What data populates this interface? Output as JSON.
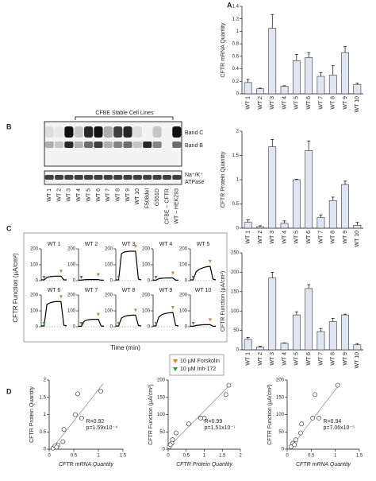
{
  "panel_labels": [
    "A",
    "B",
    "C",
    "D"
  ],
  "blot": {
    "title": "CFBE Stable Cell Lines",
    "lanes": [
      "WT 1",
      "WT 2",
      "WT 3",
      "WT 4",
      "WT 5",
      "WT 6",
      "WT 7",
      "WT 8",
      "WT 9",
      "WT 10",
      "F508del",
      "G551D",
      "CFBE – CFTR",
      "WT – HEK293"
    ],
    "band_labels": [
      "Band C",
      "Band B",
      "Na⁺/K⁺",
      "ATPase"
    ]
  },
  "trace_legend": [
    "10 µM Forskolin",
    "10 µM Inh-172"
  ],
  "chart_data": [
    {
      "type": "bar",
      "ylabel": "CFTR mRNA Quantity",
      "color": "#dde6f2",
      "categories": [
        "WT 1",
        "WT 2",
        "WT 3",
        "WT 4",
        "WT 5",
        "WT 6",
        "WT 7",
        "WT 8",
        "WT 9",
        "WT 10"
      ],
      "values": [
        0.18,
        0.08,
        1.05,
        0.12,
        0.53,
        0.58,
        0.28,
        0.3,
        0.66,
        0.15
      ],
      "errors": [
        0.05,
        0.01,
        0.22,
        0.01,
        0.1,
        0.08,
        0.06,
        0.15,
        0.1,
        0.02
      ],
      "ylim": [
        0,
        1.4
      ],
      "yticks": [
        0,
        0.2,
        0.4,
        0.6,
        0.8,
        1,
        1.2,
        1.4
      ]
    },
    {
      "type": "bar",
      "ylabel": "CFTR Protein Quantity",
      "color": "#dde6f2",
      "categories": [
        "WT 1",
        "WT 2",
        "WT 3",
        "WT 4",
        "WT 5",
        "WT 6",
        "WT 7",
        "WT 8",
        "WT 9",
        "WT 10"
      ],
      "values": [
        0.12,
        0.03,
        1.68,
        0.1,
        1.0,
        1.6,
        0.22,
        0.57,
        0.9,
        0.06
      ],
      "errors": [
        0.05,
        0.02,
        0.15,
        0.05,
        0.01,
        0.2,
        0.05,
        0.07,
        0.07,
        0.06
      ],
      "ylim": [
        0,
        2
      ],
      "yticks": [
        0,
        0.5,
        1,
        1.5,
        2
      ]
    },
    {
      "type": "bar",
      "ylabel": "CFTR Function (µA/cm²)",
      "color": "#dde6f2",
      "categories": [
        "WT 1",
        "WT 2",
        "WT 3",
        "WT 4",
        "WT 5",
        "WT 6",
        "WT 7",
        "WT 8",
        "WT 9",
        "WT 10"
      ],
      "values": [
        27,
        7,
        185,
        17,
        90,
        158,
        47,
        73,
        90,
        13
      ],
      "errors": [
        5,
        2,
        15,
        1,
        8,
        10,
        8,
        8,
        2,
        3
      ],
      "ylim": [
        0,
        250
      ],
      "yticks": [
        0,
        50,
        100,
        150,
        200,
        250
      ]
    },
    {
      "type": "line",
      "ylabel": "CFTR Function (µA/cm²)",
      "xlabel": "Time (min)",
      "ylim": [
        0,
        200
      ],
      "yticks": [
        0,
        100,
        200
      ],
      "series": [
        {
          "name": "WT 1",
          "color": "#000000",
          "values": [
            5,
            5,
            20,
            25,
            27,
            28,
            28,
            28,
            5,
            5
          ]
        },
        {
          "name": "WT 2",
          "color": "#000000",
          "values": [
            3,
            3,
            6,
            7,
            7,
            7,
            7,
            7,
            3,
            3
          ]
        },
        {
          "name": "WT 3",
          "color": "#000000",
          "values": [
            5,
            5,
            170,
            180,
            183,
            185,
            185,
            185,
            10,
            5
          ]
        },
        {
          "name": "WT 4",
          "color": "#000000",
          "values": [
            3,
            3,
            12,
            15,
            16,
            17,
            17,
            17,
            3,
            3
          ]
        },
        {
          "name": "WT 5",
          "color": "#000000",
          "values": [
            5,
            5,
            55,
            70,
            78,
            84,
            88,
            90,
            10,
            5
          ]
        },
        {
          "name": "WT 6",
          "color": "#000000",
          "values": [
            5,
            5,
            140,
            150,
            155,
            158,
            158,
            158,
            10,
            5
          ]
        },
        {
          "name": "WT 7",
          "color": "#000000",
          "values": [
            3,
            3,
            35,
            42,
            45,
            47,
            47,
            47,
            5,
            3
          ]
        },
        {
          "name": "WT 8",
          "color": "#000000",
          "values": [
            5,
            5,
            55,
            65,
            70,
            72,
            73,
            73,
            8,
            5
          ]
        },
        {
          "name": "WT 9",
          "color": "#000000",
          "values": [
            5,
            5,
            60,
            75,
            82,
            86,
            88,
            90,
            8,
            5
          ]
        },
        {
          "name": "WT 10",
          "color": "#000000",
          "values": [
            3,
            3,
            8,
            10,
            12,
            13,
            13,
            13,
            3,
            3
          ]
        }
      ]
    },
    {
      "type": "scatter",
      "xlabel": "CFTR mRNA Quantity",
      "ylabel": "CFTR Protein Quantity",
      "x": [
        0.18,
        0.08,
        1.05,
        0.12,
        0.53,
        0.58,
        0.28,
        0.3,
        0.66,
        0.15
      ],
      "values": [
        0.12,
        0.03,
        1.68,
        0.1,
        1.0,
        1.6,
        0.22,
        0.57,
        0.9,
        0.06
      ],
      "fit_line": {
        "x": [
          0.05,
          1.1
        ],
        "y": [
          0,
          1.9
        ]
      },
      "annotations": [
        "R=0.92",
        "p=1.59x10⁻⁴"
      ],
      "xlim": [
        0,
        1.5
      ],
      "xticks": [
        0,
        0.5,
        1,
        1.5
      ],
      "ylim": [
        0,
        2
      ],
      "yticks": [
        0,
        0.5,
        1,
        1.5,
        2
      ]
    },
    {
      "type": "scatter",
      "xlabel": "CFTR Protein Quantity",
      "ylabel": "CFTR Function (µA/cm²)",
      "x": [
        0.12,
        0.03,
        1.68,
        0.1,
        1.0,
        1.6,
        0.22,
        0.57,
        0.9,
        0.06
      ],
      "values": [
        27,
        7,
        185,
        17,
        90,
        158,
        47,
        73,
        90,
        13
      ],
      "fit_line": {
        "x": [
          0,
          1.75
        ],
        "y": [
          5,
          190
        ]
      },
      "annotations": [
        "R=0.99",
        "p=1.51x10⁻⁷"
      ],
      "xlim": [
        0,
        2
      ],
      "xticks": [
        0,
        0.5,
        1,
        1.5,
        2
      ],
      "ylim": [
        0,
        200
      ],
      "yticks": [
        0,
        50,
        100,
        150,
        200
      ]
    },
    {
      "type": "scatter",
      "xlabel": "CFTR mRNA Quantity",
      "ylabel": "CFTR Function (µA/cm²)",
      "x": [
        0.18,
        0.08,
        1.05,
        0.12,
        0.53,
        0.58,
        0.28,
        0.3,
        0.66,
        0.15
      ],
      "values": [
        27,
        7,
        185,
        17,
        90,
        158,
        47,
        73,
        90,
        13
      ],
      "fit_line": {
        "x": [
          0.05,
          1.1
        ],
        "y": [
          0,
          190
        ]
      },
      "annotations": [
        "R=0.94",
        "p=7.06x10⁻⁵"
      ],
      "xlim": [
        0,
        1.5
      ],
      "xticks": [
        0,
        0.5,
        1,
        1.5
      ],
      "ylim": [
        0,
        200
      ],
      "yticks": [
        0,
        50,
        100,
        150,
        200
      ]
    }
  ]
}
